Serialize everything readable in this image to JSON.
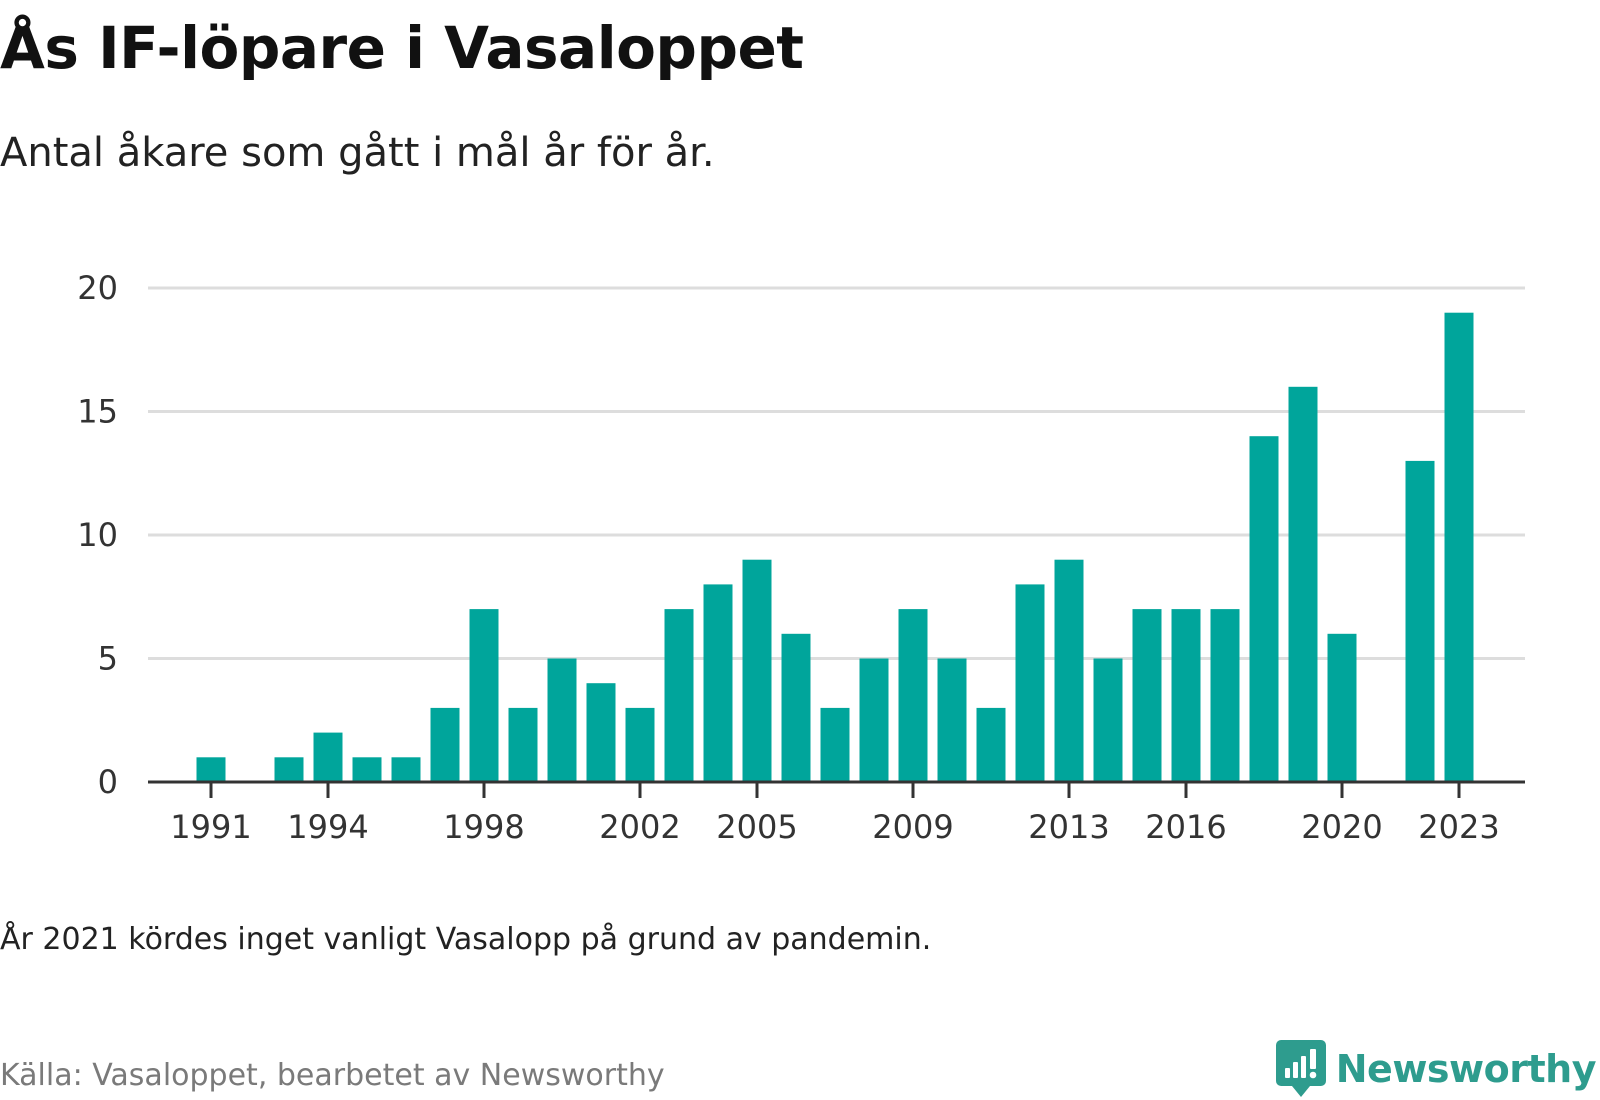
{
  "header": {
    "title": "Ås IF-löpare i Vasaloppet",
    "subtitle": "Antal åkare som gått i mål år för år."
  },
  "footer": {
    "note": "År 2021 kördes inget vanligt Vasalopp på grund av pandemin.",
    "source": "Källa: Vasaloppet, bearbetet av Newsworthy",
    "brand": "Newsworthy",
    "brand_icon": "newsworthy-logo-icon"
  },
  "colors": {
    "bar": "#00a59b",
    "grid": "#dddddd",
    "axis": "#333333",
    "brand": "#2e9c8e"
  },
  "chart_data": {
    "type": "bar",
    "title": "Ås IF-löpare i Vasaloppet",
    "subtitle": "Antal åkare som gått i mål år för år.",
    "xlabel": "",
    "ylabel": "",
    "categories": [
      1990,
      1991,
      1992,
      1993,
      1994,
      1995,
      1996,
      1997,
      1998,
      1999,
      2000,
      2001,
      2002,
      2003,
      2004,
      2005,
      2006,
      2007,
      2008,
      2009,
      2010,
      2011,
      2012,
      2013,
      2014,
      2015,
      2016,
      2017,
      2018,
      2019,
      2020,
      2021,
      2022,
      2023
    ],
    "values": [
      0,
      1,
      0,
      1,
      2,
      1,
      1,
      3,
      7,
      3,
      5,
      4,
      3,
      7,
      8,
      9,
      6,
      3,
      5,
      7,
      5,
      3,
      8,
      9,
      5,
      7,
      7,
      7,
      14,
      16,
      6,
      0,
      13,
      19
    ],
    "x_tick_labels": [
      1991,
      1994,
      1998,
      2002,
      2005,
      2009,
      2013,
      2016,
      2020,
      2023
    ],
    "y_ticks": [
      0,
      5,
      10,
      15,
      20
    ],
    "ylim": [
      0,
      20
    ],
    "grid": true,
    "legend": "none"
  }
}
